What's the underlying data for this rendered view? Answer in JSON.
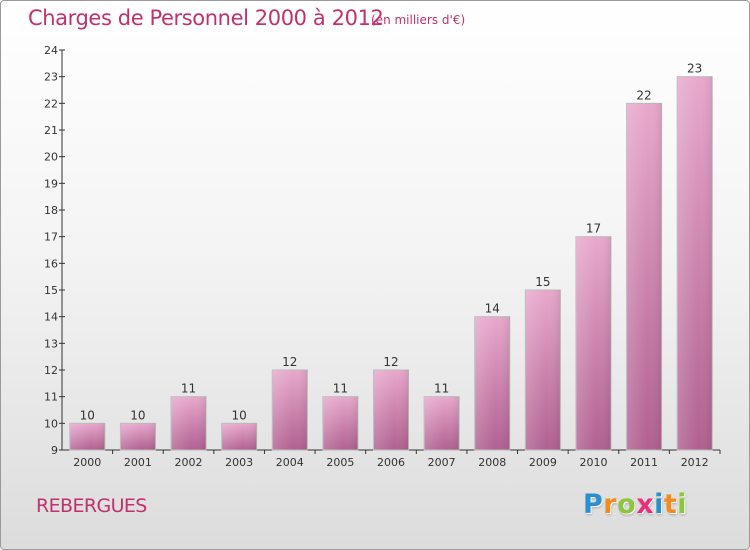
{
  "title": "Charges de Personnel 2000 à 2012",
  "subtitle": "(en milliers d'€)",
  "commune": "REBERGUES",
  "logo": {
    "text": "Proxiti",
    "letters": [
      "P",
      "r",
      "o",
      "x",
      "i",
      "t",
      "i"
    ],
    "colors": [
      "#2a8fd0",
      "#f28b1f",
      "#8cc63f",
      "#e8307a",
      "#2a8fd0",
      "#f28b1f",
      "#8cc63f"
    ]
  },
  "colors": {
    "title": "#c2306f",
    "bar_top": "#e8a8cc",
    "bar_bottom": "#b06090",
    "axis": "#333333"
  },
  "chart_data": {
    "type": "bar",
    "title": "Charges de Personnel 2000 à 2012",
    "subtitle": "(en milliers d'€)",
    "categories": [
      "2000",
      "2001",
      "2002",
      "2003",
      "2004",
      "2005",
      "2006",
      "2007",
      "2008",
      "2009",
      "2010",
      "2011",
      "2012"
    ],
    "values": [
      10,
      10,
      11,
      10,
      12,
      11,
      12,
      11,
      14,
      15,
      17,
      22,
      23
    ],
    "ylim": [
      9,
      24
    ],
    "yticks": [
      9,
      10,
      11,
      12,
      13,
      14,
      15,
      16,
      17,
      18,
      19,
      20,
      21,
      22,
      23,
      24
    ],
    "data_labels": true,
    "grid": false,
    "legend": "none"
  }
}
